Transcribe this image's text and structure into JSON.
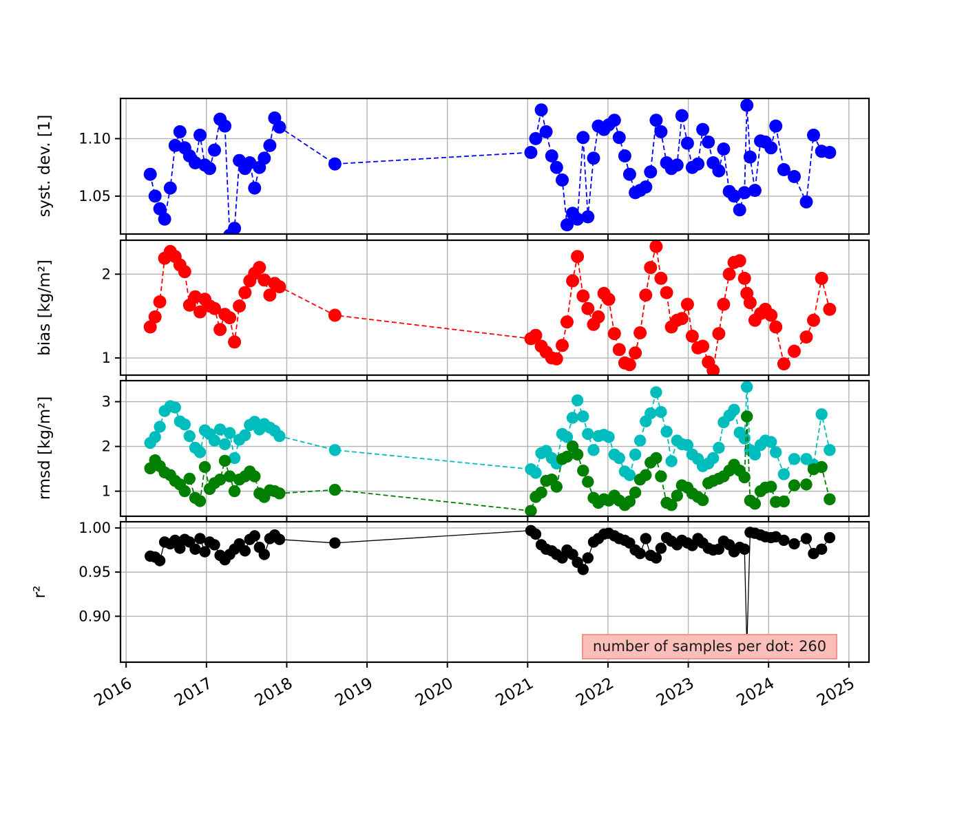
{
  "figure": {
    "background": "#ffffff",
    "grid_color": "#b3b3b3",
    "spine_color": "#000000",
    "tick_label_color": "#000000"
  },
  "annotation": {
    "text": "number of samples per dot: 260",
    "fill": "#fcbeb9",
    "border": "#f4918a"
  },
  "chart_data": {
    "type": "line",
    "style": "4 stacked time-series panels; round markers connected by dashed lines (solid thin line for r2); shared date x-axis",
    "grid": true,
    "grid_color": "#b3b3b3",
    "xlim": [
      2015.93,
      2025.25
    ],
    "xticks": [
      2016,
      2017,
      2018,
      2019,
      2020,
      2021,
      2022,
      2023,
      2024,
      2025
    ],
    "xtick_labels": [
      "2016",
      "2017",
      "2018",
      "2019",
      "2020",
      "2021",
      "2022",
      "2023",
      "2024",
      "2025"
    ],
    "x": [
      2016.3,
      2016.36,
      2016.42,
      2016.48,
      2016.55,
      2016.61,
      2016.67,
      2016.73,
      2016.79,
      2016.86,
      2016.92,
      2016.98,
      2017.04,
      2017.1,
      2017.17,
      2017.23,
      2017.29,
      2017.35,
      2017.41,
      2017.48,
      2017.54,
      2017.6,
      2017.66,
      2017.72,
      2017.79,
      2017.85,
      2017.91,
      2018.6,
      2021.04,
      2021.1,
      2021.17,
      2021.23,
      2021.3,
      2021.36,
      2021.43,
      2021.49,
      2021.56,
      2021.62,
      2021.69,
      2021.75,
      2021.82,
      2021.88,
      2021.95,
      2022.01,
      2022.08,
      2022.14,
      2022.21,
      2022.27,
      2022.34,
      2022.4,
      2022.47,
      2022.53,
      2022.6,
      2022.66,
      2022.73,
      2022.79,
      2022.86,
      2022.92,
      2022.99,
      2023.05,
      2023.12,
      2023.18,
      2023.25,
      2023.31,
      2023.38,
      2023.44,
      2023.51,
      2023.57,
      2023.64,
      2023.7,
      2023.73,
      2023.77,
      2023.83,
      2023.9,
      2023.96,
      2024.03,
      2024.09,
      2024.19,
      2024.32,
      2024.47,
      2024.56,
      2024.66,
      2024.76
    ],
    "panels": [
      {
        "ylabel": "syst. dev. [1]",
        "ylim": [
          1.017,
          1.135
        ],
        "yticks": [
          1.05,
          1.1
        ],
        "ytick_labels": [
          "1.05",
          "1.10"
        ],
        "series": [
          {
            "name": "syst_dev",
            "color": "#0000ff",
            "line": "dashed",
            "marker_r": 9.5,
            "values": [
              1.069,
              1.05,
              1.039,
              1.03,
              1.057,
              1.094,
              1.106,
              1.092,
              1.085,
              1.079,
              1.103,
              1.077,
              1.074,
              1.09,
              1.117,
              1.111,
              1.016,
              1.022,
              1.081,
              1.074,
              1.079,
              1.057,
              1.075,
              1.083,
              1.094,
              1.118,
              1.11,
              1.078,
              1.088,
              1.1,
              1.125,
              1.106,
              1.085,
              1.075,
              1.064,
              1.025,
              1.035,
              1.03,
              1.101,
              1.032,
              1.083,
              1.111,
              1.108,
              1.112,
              1.116,
              1.101,
              1.085,
              1.069,
              1.053,
              1.055,
              1.058,
              1.071,
              1.116,
              1.106,
              1.079,
              1.074,
              1.077,
              1.12,
              1.096,
              1.075,
              1.078,
              1.108,
              1.097,
              1.079,
              1.072,
              1.091,
              1.054,
              1.05,
              1.038,
              1.053,
              1.129,
              1.084,
              1.055,
              1.098,
              1.097,
              1.092,
              1.111,
              1.073,
              1.067,
              1.045,
              1.103,
              1.089,
              1.088
            ]
          }
        ]
      },
      {
        "ylabel": "bias [kg/m²]",
        "ylim": [
          0.795,
          2.405
        ],
        "yticks": [
          1,
          2
        ],
        "ytick_labels": [
          "1",
          "2"
        ],
        "series": [
          {
            "name": "bias",
            "color": "#ff0000",
            "line": "dashed",
            "marker_r": 9.5,
            "values": [
              1.37,
              1.49,
              1.67,
              2.19,
              2.27,
              2.21,
              2.11,
              2.03,
              1.63,
              1.73,
              1.55,
              1.7,
              1.62,
              1.59,
              1.34,
              1.52,
              1.48,
              1.19,
              1.62,
              1.78,
              1.92,
              2.01,
              2.08,
              1.93,
              1.75,
              1.89,
              1.85,
              1.51,
              1.23,
              1.27,
              1.14,
              1.07,
              1.0,
              0.99,
              1.15,
              1.43,
              1.92,
              2.21,
              1.74,
              1.59,
              1.4,
              1.49,
              1.77,
              1.7,
              1.29,
              1.1,
              0.94,
              0.92,
              1.06,
              1.3,
              1.75,
              2.08,
              2.33,
              1.95,
              1.78,
              1.37,
              1.45,
              1.47,
              1.64,
              1.26,
              1.12,
              1.14,
              0.95,
              0.85,
              1.29,
              1.64,
              2.0,
              2.14,
              2.16,
              1.95,
              1.77,
              1.66,
              1.45,
              1.53,
              1.58,
              1.51,
              1.37,
              0.93,
              1.08,
              1.25,
              1.45,
              1.95,
              1.58
            ]
          }
        ]
      },
      {
        "ylabel": "rmsd [kg/m²]",
        "ylim": [
          0.44,
          3.47
        ],
        "yticks": [
          1,
          2,
          3
        ],
        "ytick_labels": [
          "1",
          "2",
          "3"
        ],
        "series": [
          {
            "name": "rmsd_cyan",
            "color": "#00bdbd",
            "line": "dashed",
            "marker_r": 8.7,
            "values": [
              2.08,
              2.21,
              2.44,
              2.79,
              2.9,
              2.87,
              2.56,
              2.49,
              2.23,
              1.97,
              1.87,
              2.36,
              2.28,
              2.13,
              2.38,
              2.05,
              2.3,
              1.74,
              2.15,
              2.25,
              2.48,
              2.55,
              2.38,
              2.5,
              2.42,
              2.35,
              2.23,
              1.92,
              1.49,
              1.41,
              1.85,
              1.9,
              1.74,
              1.62,
              2.28,
              2.21,
              2.64,
              3.03,
              2.67,
              2.28,
              1.92,
              2.23,
              2.26,
              2.21,
              1.82,
              1.74,
              1.44,
              1.36,
              1.82,
              2.13,
              2.56,
              2.74,
              3.21,
              2.77,
              2.33,
              1.67,
              2.13,
              2.05,
              2.03,
              1.82,
              1.72,
              1.56,
              1.62,
              1.74,
              1.97,
              2.54,
              2.69,
              2.82,
              2.31,
              2.18,
              3.33,
              1.92,
              1.82,
              2.03,
              2.13,
              2.1,
              1.87,
              1.38,
              1.72,
              1.72,
              1.59,
              2.72,
              1.92
            ]
          },
          {
            "name": "rmsd_green",
            "color": "#007f00",
            "line": "dashed",
            "marker_r": 8.7,
            "values": [
              1.51,
              1.69,
              1.56,
              1.42,
              1.36,
              1.23,
              1.15,
              1.0,
              1.28,
              0.85,
              0.78,
              1.54,
              1.05,
              1.18,
              1.26,
              1.68,
              1.33,
              1.0,
              1.26,
              1.33,
              1.44,
              1.33,
              0.95,
              0.87,
              1.02,
              1.0,
              0.95,
              1.03,
              0.56,
              0.87,
              0.97,
              1.23,
              1.26,
              1.1,
              1.72,
              1.77,
              2.0,
              1.82,
              1.46,
              1.21,
              0.85,
              0.74,
              0.82,
              0.79,
              0.9,
              0.79,
              0.69,
              0.77,
              0.97,
              1.26,
              1.36,
              1.64,
              1.74,
              1.33,
              0.74,
              0.69,
              0.9,
              1.13,
              1.08,
              0.95,
              0.87,
              0.8,
              1.18,
              1.23,
              1.28,
              1.33,
              1.46,
              1.59,
              1.46,
              1.31,
              2.67,
              0.79,
              0.72,
              1.0,
              1.08,
              1.1,
              0.76,
              0.77,
              1.13,
              1.15,
              1.49,
              1.54,
              0.82
            ]
          }
        ]
      },
      {
        "ylabel": "r²",
        "ylim": [
          0.848,
          1.007
        ],
        "yticks": [
          0.9,
          0.95,
          1.0
        ],
        "ytick_labels": [
          "0.90",
          "0.95",
          "1.00"
        ],
        "series": [
          {
            "name": "r2",
            "color": "#000000",
            "line": "solid",
            "marker_r": 8.2,
            "values": [
              0.968,
              0.967,
              0.963,
              0.984,
              0.982,
              0.986,
              0.977,
              0.987,
              0.984,
              0.976,
              0.988,
              0.973,
              0.984,
              0.981,
              0.969,
              0.964,
              0.97,
              0.976,
              0.982,
              0.974,
              0.987,
              0.991,
              0.978,
              0.97,
              0.988,
              0.992,
              0.987,
              0.983,
              0.997,
              0.993,
              0.981,
              0.976,
              0.974,
              0.97,
              0.966,
              0.975,
              0.97,
              0.961,
              0.953,
              0.966,
              0.984,
              0.988,
              0.993,
              0.994,
              0.991,
              0.988,
              0.986,
              0.983,
              0.975,
              0.971,
              0.988,
              0.969,
              0.966,
              0.977,
              0.989,
              0.985,
              0.981,
              0.986,
              0.983,
              0.98,
              0.988,
              0.983,
              0.977,
              0.975,
              0.976,
              0.985,
              0.981,
              0.973,
              0.978,
              0.976,
              0.866,
              0.995,
              0.994,
              0.992,
              0.99,
              0.989,
              0.99,
              0.986,
              0.982,
              0.988,
              0.971,
              0.976,
              0.989
            ]
          }
        ]
      }
    ],
    "annotation": {
      "text": "number of samples per dot: 260"
    }
  }
}
